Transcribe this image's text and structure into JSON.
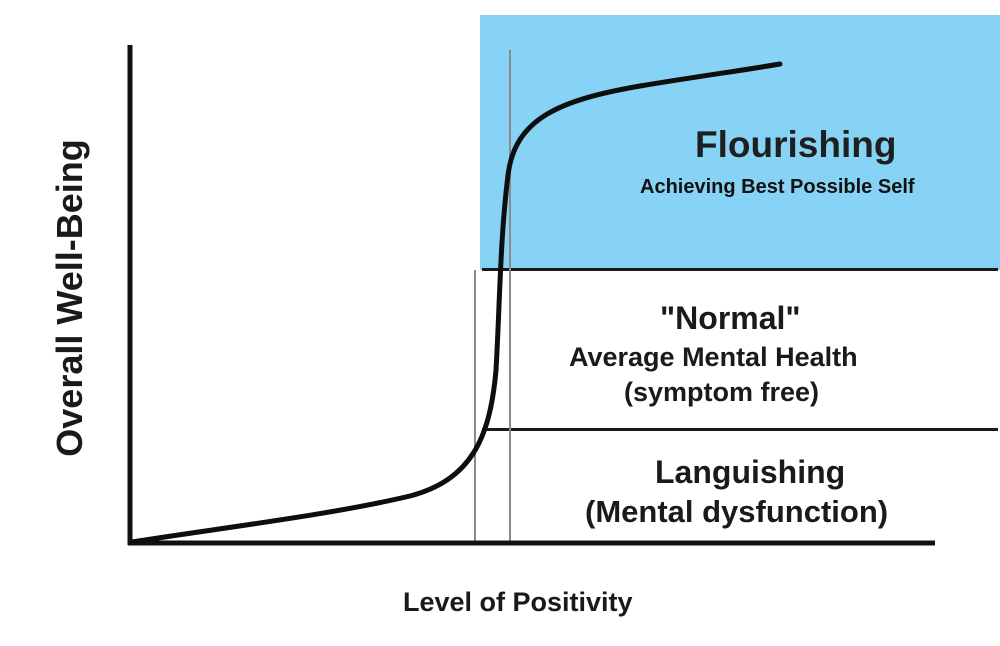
{
  "colors": {
    "flourishing_zone": "#87d3f5",
    "curve": "#0e0e0e",
    "axis": "#111111",
    "guide_lines": "#8a8a8a"
  },
  "diagram": {
    "zones": {
      "flourishing": {
        "title": "Flourishing",
        "subtitle": "Achieving Best Possible Self"
      },
      "normal": {
        "title": "\"Normal\"",
        "line2": "Average Mental Health",
        "line3": "(symptom free)"
      },
      "languishing": {
        "title": "Languishing",
        "line2": "(Mental dysfunction)"
      }
    },
    "x_axis_label": "Level of Positivity",
    "y_axis_label": "Overall Well-Being"
  }
}
